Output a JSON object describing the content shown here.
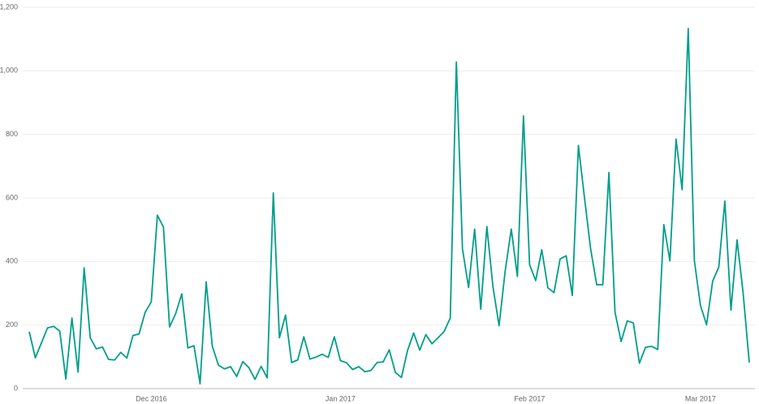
{
  "chart_data": {
    "type": "line",
    "categories": [
      null,
      null,
      null,
      null,
      null,
      null,
      null,
      null,
      null,
      null,
      null,
      null,
      null,
      null,
      null,
      null,
      null,
      null,
      null,
      null,
      "Dec 2016",
      null,
      null,
      null,
      null,
      null,
      null,
      null,
      null,
      null,
      null,
      null,
      null,
      null,
      null,
      null,
      null,
      null,
      null,
      null,
      null,
      null,
      null,
      null,
      null,
      null,
      null,
      null,
      null,
      null,
      null,
      "Jan 2017",
      null,
      null,
      null,
      null,
      null,
      null,
      null,
      null,
      null,
      null,
      null,
      null,
      null,
      null,
      null,
      null,
      null,
      null,
      null,
      null,
      null,
      null,
      null,
      null,
      null,
      null,
      null,
      null,
      null,
      null,
      "Feb 2017",
      null,
      null,
      null,
      null,
      null,
      null,
      null,
      null,
      null,
      null,
      null,
      null,
      null,
      null,
      null,
      null,
      null,
      null,
      null,
      null,
      null,
      null,
      null,
      null,
      null,
      null,
      null,
      "Mar 2017",
      null,
      null,
      null,
      null,
      null,
      null,
      null,
      null
    ],
    "series": [
      {
        "color": "#009e8a",
        "values": [
          179,
          97,
          144,
          191,
          196,
          181,
          30,
          222,
          52,
          380,
          160,
          125,
          131,
          92,
          90,
          114,
          96,
          167,
          172,
          240,
          273,
          546,
          508,
          194,
          236,
          298,
          128,
          135,
          15,
          336,
          134,
          74,
          62,
          69,
          38,
          85,
          66,
          29,
          70,
          34,
          616,
          160,
          231,
          82,
          90,
          163,
          93,
          99,
          108,
          98,
          163,
          88,
          81,
          60,
          69,
          53,
          57,
          82,
          84,
          122,
          51,
          35,
          120,
          175,
          121,
          170,
          141,
          160,
          180,
          222,
          1028,
          440,
          318,
          502,
          250,
          510,
          320,
          198,
          370,
          502,
          353,
          858,
          390,
          340,
          437,
          317,
          302,
          408,
          418,
          293,
          765,
          600,
          440,
          327,
          327,
          680,
          240,
          148,
          213,
          207,
          80,
          130,
          133,
          123,
          516,
          402,
          785,
          626,
          1133,
          403,
          262,
          201,
          338,
          382,
          590,
          247,
          468,
          300,
          82
        ]
      }
    ],
    "ylim": [
      0,
      1200
    ],
    "yticks": [
      0,
      200,
      400,
      600,
      800,
      {
        "value": 1000,
        "label": "1,000"
      },
      {
        "value": 1200,
        "label": "1,200"
      }
    ],
    "grid": true
  }
}
